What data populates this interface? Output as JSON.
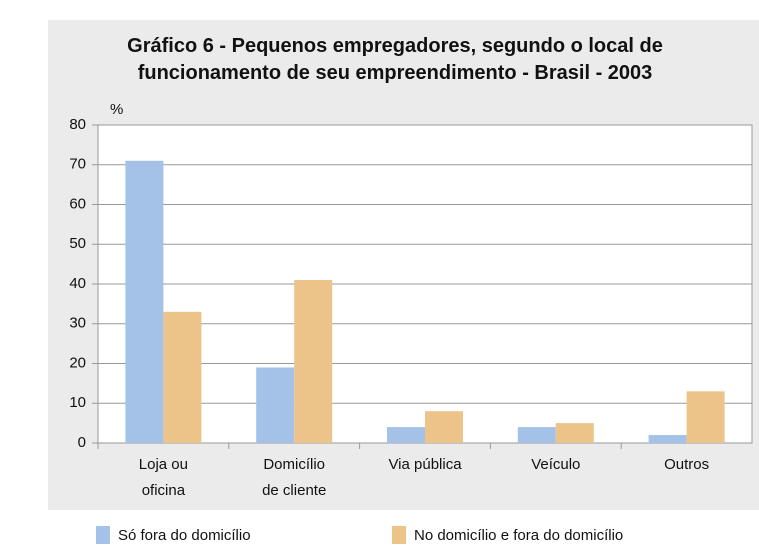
{
  "chart_data": {
    "type": "bar",
    "title": "Gráfico 6 - Pequenos empregadores, segundo o local de\nfuncionamento de seu empreendimento - Brasil - 2003",
    "y_label": "%",
    "categories": [
      "Loja ou\noficina",
      "Domicílio\nde cliente",
      "Via pública",
      "Veículo",
      "Outros"
    ],
    "series": [
      {
        "name": "Só fora do domicílio",
        "color": "#a4c2e8",
        "values": [
          71,
          19,
          4,
          4,
          2
        ]
      },
      {
        "name": "No domicílio e fora do domicílio",
        "color": "#ecc48a",
        "values": [
          33,
          41,
          8,
          5,
          13
        ]
      }
    ],
    "ylim": [
      0,
      80
    ],
    "yticks": [
      0,
      10,
      20,
      30,
      40,
      50,
      60,
      70,
      80
    ],
    "grid": true,
    "legend": "bottom"
  }
}
